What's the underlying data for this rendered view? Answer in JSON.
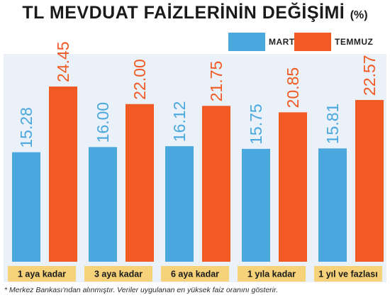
{
  "chart_data": {
    "type": "bar",
    "title": "TL MEVDUAT FAİZLERİNİN DEĞİŞİMİ",
    "title_unit": "(%)",
    "categories": [
      "1 aya kadar",
      "3 aya kadar",
      "6 aya kadar",
      "1 yıla kadar",
      "1 yıl ve fazlası"
    ],
    "series": [
      {
        "name": "MART",
        "color": "#4aa8df",
        "values": [
          15.28,
          16.0,
          16.12,
          15.75,
          15.81
        ],
        "labels": [
          "15.28",
          "16.00",
          "16.12",
          "15.75",
          "15.81"
        ]
      },
      {
        "name": "TEMMUZ",
        "color": "#f15a24",
        "values": [
          24.45,
          22.0,
          21.75,
          20.85,
          22.57
        ],
        "labels": [
          "24.45",
          "22.00",
          "21.75",
          "20.85",
          "22.57"
        ]
      }
    ],
    "ylim": [
      0,
      29
    ],
    "grid": false,
    "legend_position": "top-right",
    "background_color": "#eaf1f8",
    "category_label_background": "#f6d27a",
    "footnote": "* Merkez Bankası'ndan alınmıştır. Veriler uygulanan en yüksek faiz oranını gösterir."
  }
}
